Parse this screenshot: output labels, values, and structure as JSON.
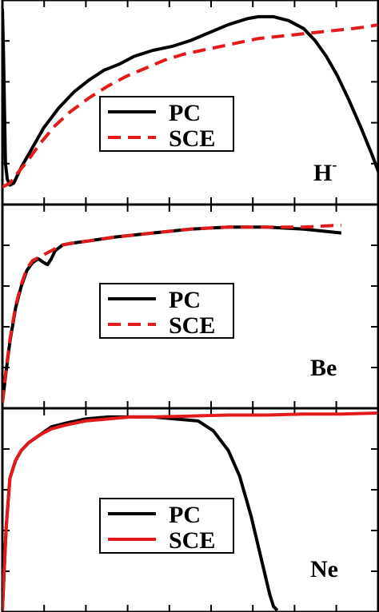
{
  "chart_data": [
    {
      "type": "line",
      "panel_label": "H",
      "panel_label_sup": "-",
      "xlim": [
        0,
        1
      ],
      "ylim": [
        0,
        1
      ],
      "legend_position": "center-left",
      "series": [
        {
          "name": "PC",
          "color": "#000000",
          "dash": "solid",
          "x": [
            0.0,
            0.003,
            0.008,
            0.013,
            0.02,
            0.03,
            0.05,
            0.08,
            0.11,
            0.15,
            0.19,
            0.23,
            0.27,
            0.31,
            0.35,
            0.4,
            0.45,
            0.5,
            0.55,
            0.6,
            0.65,
            0.68,
            0.72,
            0.76,
            0.8,
            0.83,
            0.86,
            0.89,
            0.92,
            0.95,
            0.98,
            1.0
          ],
          "y": [
            0.98,
            0.75,
            0.2,
            0.12,
            0.09,
            0.1,
            0.18,
            0.28,
            0.38,
            0.48,
            0.56,
            0.62,
            0.67,
            0.7,
            0.74,
            0.77,
            0.79,
            0.82,
            0.86,
            0.9,
            0.93,
            0.94,
            0.94,
            0.92,
            0.88,
            0.82,
            0.74,
            0.64,
            0.52,
            0.39,
            0.25,
            0.15
          ]
        },
        {
          "name": "SCE",
          "color": "#e31a1c",
          "dash": "dashed",
          "x": [
            0.0,
            0.02,
            0.04,
            0.07,
            0.1,
            0.14,
            0.18,
            0.23,
            0.28,
            0.33,
            0.38,
            0.43,
            0.48,
            0.53,
            0.58,
            0.63,
            0.68,
            0.73,
            0.78,
            0.83,
            0.88,
            0.93,
            0.97,
            1.0
          ],
          "y": [
            0.08,
            0.1,
            0.15,
            0.22,
            0.3,
            0.39,
            0.46,
            0.53,
            0.59,
            0.64,
            0.68,
            0.72,
            0.75,
            0.77,
            0.79,
            0.81,
            0.83,
            0.84,
            0.85,
            0.86,
            0.87,
            0.88,
            0.89,
            0.9
          ]
        }
      ]
    },
    {
      "type": "line",
      "panel_label": "Be",
      "panel_label_sup": "",
      "xlim": [
        0,
        1
      ],
      "ylim": [
        0,
        1
      ],
      "legend_position": "center",
      "series": [
        {
          "name": "PC",
          "color": "#000000",
          "dash": "solid",
          "x": [
            0.0,
            0.01,
            0.02,
            0.035,
            0.05,
            0.065,
            0.08,
            0.095,
            0.11,
            0.12,
            0.13,
            0.14,
            0.16,
            0.19,
            0.23,
            0.3,
            0.4,
            0.5,
            0.6,
            0.7,
            0.8,
            0.9
          ],
          "y": [
            0.02,
            0.18,
            0.33,
            0.5,
            0.61,
            0.69,
            0.73,
            0.75,
            0.73,
            0.72,
            0.75,
            0.79,
            0.82,
            0.83,
            0.84,
            0.86,
            0.88,
            0.9,
            0.91,
            0.91,
            0.9,
            0.88
          ]
        },
        {
          "name": "SCE",
          "color": "#e31a1c",
          "dash": "dashed",
          "x": [
            0.0,
            0.01,
            0.02,
            0.035,
            0.05,
            0.065,
            0.08,
            0.1,
            0.12,
            0.14,
            0.16,
            0.19,
            0.23,
            0.3,
            0.4,
            0.5,
            0.6,
            0.7,
            0.8,
            0.9
          ],
          "y": [
            0.02,
            0.19,
            0.34,
            0.51,
            0.62,
            0.7,
            0.74,
            0.76,
            0.78,
            0.8,
            0.82,
            0.83,
            0.84,
            0.86,
            0.88,
            0.9,
            0.91,
            0.91,
            0.91,
            0.92
          ]
        }
      ]
    },
    {
      "type": "line",
      "panel_label": "Ne",
      "panel_label_sup": "",
      "xlim": [
        0,
        1
      ],
      "ylim": [
        0,
        1
      ],
      "legend_position": "center",
      "series": [
        {
          "name": "PC",
          "color": "#000000",
          "dash": "solid",
          "x": [
            0.0,
            0.01,
            0.02,
            0.035,
            0.05,
            0.07,
            0.1,
            0.13,
            0.17,
            0.22,
            0.28,
            0.34,
            0.4,
            0.46,
            0.52,
            0.56,
            0.6,
            0.63,
            0.66,
            0.68,
            0.7,
            0.71,
            0.72,
            0.73
          ],
          "y": [
            0.0,
            0.42,
            0.67,
            0.76,
            0.81,
            0.85,
            0.89,
            0.93,
            0.95,
            0.97,
            0.98,
            0.98,
            0.98,
            0.97,
            0.96,
            0.91,
            0.81,
            0.68,
            0.48,
            0.32,
            0.16,
            0.08,
            0.02,
            0.0
          ]
        },
        {
          "name": "SCE",
          "color": "#e31a1c",
          "dash": "solid",
          "x": [
            0.0,
            0.01,
            0.02,
            0.035,
            0.05,
            0.07,
            0.1,
            0.13,
            0.17,
            0.22,
            0.28,
            0.34,
            0.4,
            0.5,
            0.6,
            0.7,
            0.8,
            0.9,
            1.0
          ],
          "y": [
            0.0,
            0.42,
            0.67,
            0.76,
            0.81,
            0.85,
            0.89,
            0.92,
            0.94,
            0.96,
            0.97,
            0.98,
            0.98,
            0.985,
            0.99,
            0.99,
            0.995,
            0.995,
            1.0
          ]
        }
      ]
    }
  ]
}
